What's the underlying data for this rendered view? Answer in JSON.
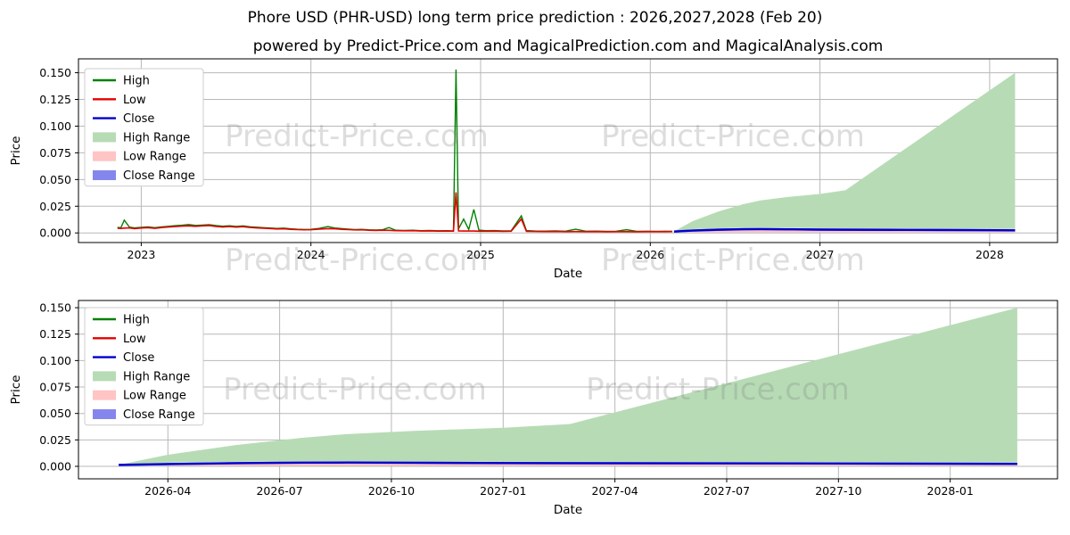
{
  "title": "Phore USD (PHR-USD) long term price prediction : 2026,2027,2028 (Feb 20)",
  "subtitle": "powered by Predict-Price.com and MagicalPrediction.com and MagicalAnalysis.com",
  "watermark": {
    "text": "Predict-Price.com"
  },
  "colors": {
    "high_line": "#008000",
    "low_line": "#e60000",
    "close_line": "#0000cc",
    "high_range_fill": "#b7dcb5",
    "low_range_fill": "#ffc4c4",
    "close_range_fill": "#8486ee",
    "grid": "#b8b8b8",
    "spine": "#000000"
  },
  "legend": [
    {
      "label": "High",
      "type": "line",
      "color": "#008000"
    },
    {
      "label": "Low",
      "type": "line",
      "color": "#e60000"
    },
    {
      "label": "Close",
      "type": "line",
      "color": "#0000cc"
    },
    {
      "label": "High Range",
      "type": "patch",
      "color": "#b7dcb5"
    },
    {
      "label": "Low Range",
      "type": "patch",
      "color": "#ffc4c4"
    },
    {
      "label": "Close Range",
      "type": "patch",
      "color": "#8486ee"
    }
  ],
  "charts": [
    {
      "name": "overview",
      "xlabel": "Date",
      "ylabel": "Price",
      "show_history": true,
      "xlim": [
        2022.63,
        2028.4
      ],
      "ylim": [
        -0.009,
        0.163
      ],
      "x_ticks": [
        {
          "label": "2023",
          "t": 2023
        },
        {
          "label": "2024",
          "t": 2024
        },
        {
          "label": "2025",
          "t": 2025
        },
        {
          "label": "2026",
          "t": 2026
        },
        {
          "label": "2027",
          "t": 2027
        },
        {
          "label": "2028",
          "t": 2028
        }
      ],
      "y_ticks": [
        {
          "label": "0.000",
          "v": 0.0
        },
        {
          "label": "0.025",
          "v": 0.025
        },
        {
          "label": "0.050",
          "v": 0.05
        },
        {
          "label": "0.075",
          "v": 0.075
        },
        {
          "label": "0.100",
          "v": 0.1
        },
        {
          "label": "0.125",
          "v": 0.125
        },
        {
          "label": "0.150",
          "v": 0.15
        }
      ]
    },
    {
      "name": "prediction-zoom",
      "xlabel": "Date",
      "ylabel": "Price",
      "show_history": false,
      "xlim": [
        2026.05,
        2028.24
      ],
      "ylim": [
        -0.0118,
        0.1568
      ],
      "x_ticks": [
        {
          "label": "2026-04",
          "t": 2026.25
        },
        {
          "label": "2026-07",
          "t": 2026.5
        },
        {
          "label": "2026-10",
          "t": 2026.75
        },
        {
          "label": "2027-01",
          "t": 2027.0
        },
        {
          "label": "2027-04",
          "t": 2027.25
        },
        {
          "label": "2027-07",
          "t": 2027.5
        },
        {
          "label": "2027-10",
          "t": 2027.75
        },
        {
          "label": "2028-01",
          "t": 2028.0
        }
      ],
      "y_ticks": [
        {
          "label": "0.000",
          "v": 0.0
        },
        {
          "label": "0.025",
          "v": 0.025
        },
        {
          "label": "0.050",
          "v": 0.05
        },
        {
          "label": "0.075",
          "v": 0.075
        },
        {
          "label": "0.100",
          "v": 0.1
        },
        {
          "label": "0.125",
          "v": 0.125
        },
        {
          "label": "0.150",
          "v": 0.15
        }
      ]
    }
  ],
  "chart_data": {
    "type": "line+area",
    "units": "USD",
    "history": {
      "t": [
        2022.86,
        2022.88,
        2022.9,
        2022.93,
        2022.96,
        2023.0,
        2023.04,
        2023.08,
        2023.12,
        2023.16,
        2023.2,
        2023.24,
        2023.28,
        2023.32,
        2023.36,
        2023.4,
        2023.44,
        2023.48,
        2023.52,
        2023.56,
        2023.6,
        2023.64,
        2023.68,
        2023.72,
        2023.76,
        2023.8,
        2023.84,
        2023.88,
        2023.92,
        2023.96,
        2024.0,
        2024.05,
        2024.1,
        2024.14,
        2024.18,
        2024.22,
        2024.26,
        2024.3,
        2024.34,
        2024.38,
        2024.42,
        2024.46,
        2024.5,
        2024.55,
        2024.6,
        2024.65,
        2024.7,
        2024.75,
        2024.8,
        2024.84,
        2024.855,
        2024.87,
        2024.9,
        2024.93,
        2024.96,
        2024.99,
        2025.03,
        2025.08,
        2025.13,
        2025.18,
        2025.24,
        2025.27,
        2025.32,
        2025.38,
        2025.44,
        2025.5,
        2025.56,
        2025.62,
        2025.68,
        2025.74,
        2025.8,
        2025.86,
        2025.92,
        2025.98,
        2026.04,
        2026.09,
        2026.13
      ],
      "high": [
        0.0052,
        0.0048,
        0.012,
        0.0055,
        0.0047,
        0.0052,
        0.0056,
        0.0049,
        0.0057,
        0.0062,
        0.0068,
        0.0072,
        0.0078,
        0.007,
        0.0073,
        0.0077,
        0.0069,
        0.0063,
        0.0067,
        0.0061,
        0.0066,
        0.0058,
        0.0053,
        0.0049,
        0.0046,
        0.0042,
        0.0045,
        0.0039,
        0.0035,
        0.0033,
        0.0034,
        0.0043,
        0.006,
        0.0046,
        0.0041,
        0.0036,
        0.0032,
        0.0034,
        0.0029,
        0.0027,
        0.0029,
        0.005,
        0.0025,
        0.0023,
        0.0025,
        0.0021,
        0.0023,
        0.002,
        0.0021,
        0.0019,
        0.153,
        0.0038,
        0.013,
        0.0032,
        0.022,
        0.0026,
        0.0021,
        0.0022,
        0.0019,
        0.002,
        0.016,
        0.0022,
        0.0018,
        0.0017,
        0.0019,
        0.0016,
        0.0035,
        0.0016,
        0.0017,
        0.0015,
        0.0016,
        0.003,
        0.0015,
        0.0016,
        0.0015,
        0.0016,
        0.0015
      ],
      "low": [
        0.0044,
        0.0042,
        0.0045,
        0.0047,
        0.004,
        0.0046,
        0.0049,
        0.0043,
        0.005,
        0.0055,
        0.006,
        0.0064,
        0.0066,
        0.0062,
        0.0066,
        0.0069,
        0.0061,
        0.0055,
        0.006,
        0.0054,
        0.0059,
        0.0051,
        0.0047,
        0.0044,
        0.0041,
        0.0037,
        0.0039,
        0.0034,
        0.0031,
        0.0029,
        0.003,
        0.0036,
        0.004,
        0.0039,
        0.0034,
        0.0031,
        0.0028,
        0.0029,
        0.0025,
        0.0023,
        0.0025,
        0.0024,
        0.0021,
        0.002,
        0.0021,
        0.0018,
        0.0019,
        0.0017,
        0.0018,
        0.0017,
        0.038,
        0.0019,
        0.0018,
        0.0018,
        0.0018,
        0.0016,
        0.0016,
        0.0017,
        0.0015,
        0.0016,
        0.013,
        0.0015,
        0.0014,
        0.0013,
        0.0014,
        0.0012,
        0.0013,
        0.0012,
        0.0013,
        0.0011,
        0.0012,
        0.0012,
        0.0011,
        0.0012,
        0.0012,
        0.0012,
        0.0013
      ]
    },
    "prediction": {
      "t": [
        2026.14,
        2026.25,
        2026.4,
        2026.55,
        2026.65,
        2026.8,
        2027.0,
        2027.15,
        2027.4,
        2027.65,
        2027.9,
        2028.15
      ],
      "high": [
        0.0015,
        0.011,
        0.02,
        0.027,
        0.0305,
        0.0335,
        0.0365,
        0.04,
        0.0675,
        0.095,
        0.1225,
        0.15
      ],
      "close": [
        0.0013,
        0.0022,
        0.003,
        0.0035,
        0.0036,
        0.0034,
        0.0031,
        0.003,
        0.0029,
        0.0028,
        0.0026,
        0.0024
      ],
      "band_geometry": {
        "low_range_bottom": 0.0005,
        "low_range_top_offset_below_close": 0.0006,
        "close_range_half_width": 0.0011,
        "high_range_bottom_offset_above_close": 0.0013
      }
    }
  }
}
